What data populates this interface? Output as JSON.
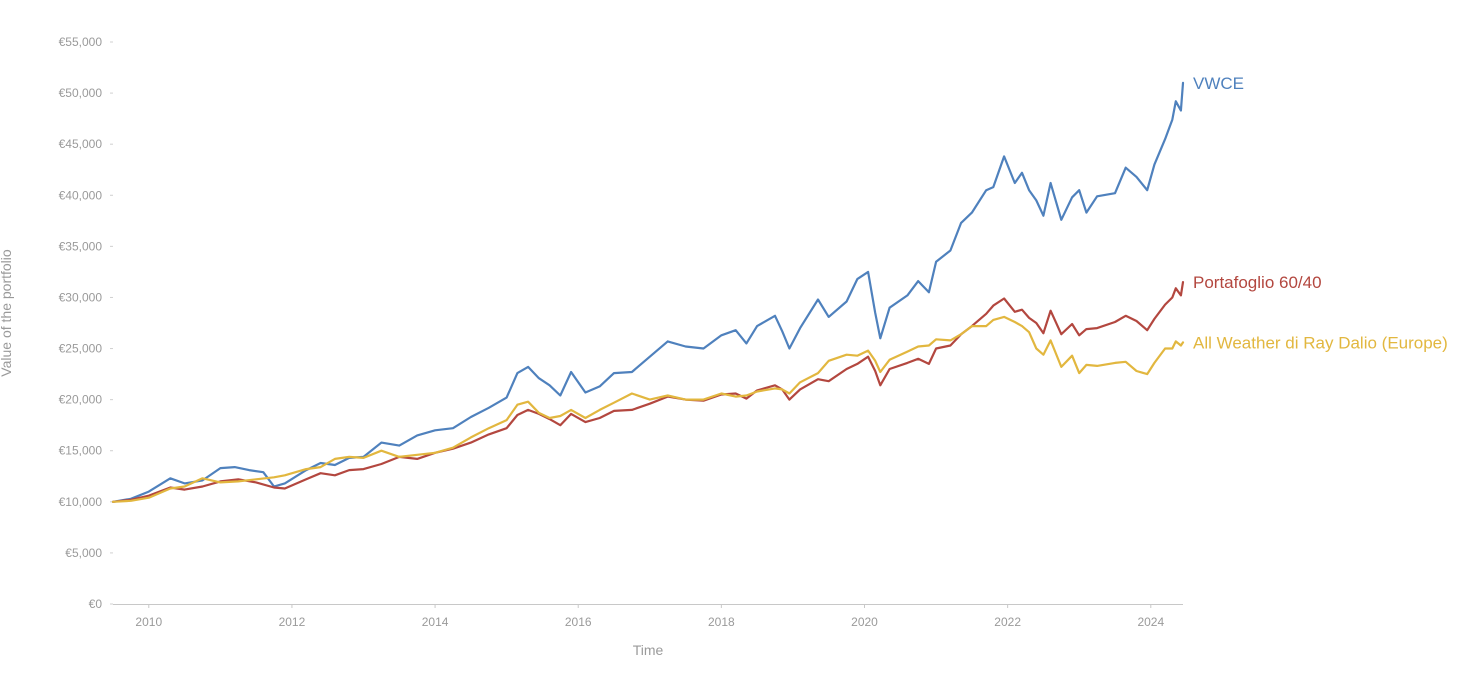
{
  "chart_data": {
    "type": "line",
    "xlabel": "Time",
    "ylabel": "Value of the portfolio",
    "xlim": [
      2009.5,
      2024.45
    ],
    "ylim": [
      0,
      55000
    ],
    "x_ticks": [
      2010,
      2012,
      2014,
      2016,
      2018,
      2020,
      2022,
      2024
    ],
    "x_tick_labels": [
      "2010",
      "2012",
      "2014",
      "2016",
      "2018",
      "2020",
      "2022",
      "2024"
    ],
    "y_ticks": [
      0,
      5000,
      10000,
      15000,
      20000,
      25000,
      30000,
      35000,
      40000,
      45000,
      50000,
      55000
    ],
    "y_tick_labels": [
      "€0",
      "€5,000",
      "€10,000",
      "€15,000",
      "€20,000",
      "€25,000",
      "€30,000",
      "€35,000",
      "€40,000",
      "€45,000",
      "€50,000",
      "€55,000"
    ],
    "grid": false,
    "legend": "inline-right",
    "series": [
      {
        "name": "VWCE",
        "color": "#4f81bd",
        "points": [
          [
            2009.5,
            10000
          ],
          [
            2009.75,
            10300
          ],
          [
            2010.0,
            11000
          ],
          [
            2010.3,
            12300
          ],
          [
            2010.5,
            11800
          ],
          [
            2010.75,
            12100
          ],
          [
            2011.0,
            13300
          ],
          [
            2011.2,
            13400
          ],
          [
            2011.4,
            13100
          ],
          [
            2011.6,
            12900
          ],
          [
            2011.75,
            11500
          ],
          [
            2011.9,
            11800
          ],
          [
            2012.2,
            13100
          ],
          [
            2012.4,
            13800
          ],
          [
            2012.6,
            13600
          ],
          [
            2012.8,
            14300
          ],
          [
            2013.0,
            14400
          ],
          [
            2013.25,
            15800
          ],
          [
            2013.5,
            15500
          ],
          [
            2013.75,
            16500
          ],
          [
            2014.0,
            17000
          ],
          [
            2014.25,
            17200
          ],
          [
            2014.5,
            18300
          ],
          [
            2014.75,
            19200
          ],
          [
            2015.0,
            20200
          ],
          [
            2015.15,
            22600
          ],
          [
            2015.3,
            23200
          ],
          [
            2015.45,
            22100
          ],
          [
            2015.6,
            21400
          ],
          [
            2015.75,
            20400
          ],
          [
            2015.9,
            22700
          ],
          [
            2016.1,
            20700
          ],
          [
            2016.3,
            21300
          ],
          [
            2016.5,
            22600
          ],
          [
            2016.75,
            22700
          ],
          [
            2017.0,
            24200
          ],
          [
            2017.25,
            25700
          ],
          [
            2017.5,
            25200
          ],
          [
            2017.75,
            25000
          ],
          [
            2018.0,
            26300
          ],
          [
            2018.2,
            26800
          ],
          [
            2018.35,
            25500
          ],
          [
            2018.5,
            27200
          ],
          [
            2018.75,
            28200
          ],
          [
            2018.85,
            26700
          ],
          [
            2018.95,
            25000
          ],
          [
            2019.1,
            27000
          ],
          [
            2019.35,
            29800
          ],
          [
            2019.5,
            28100
          ],
          [
            2019.75,
            29600
          ],
          [
            2019.9,
            31800
          ],
          [
            2020.05,
            32500
          ],
          [
            2020.15,
            28500
          ],
          [
            2020.22,
            26000
          ],
          [
            2020.35,
            29000
          ],
          [
            2020.6,
            30200
          ],
          [
            2020.75,
            31600
          ],
          [
            2020.9,
            30500
          ],
          [
            2021.0,
            33500
          ],
          [
            2021.2,
            34600
          ],
          [
            2021.35,
            37300
          ],
          [
            2021.5,
            38300
          ],
          [
            2021.7,
            40500
          ],
          [
            2021.8,
            40800
          ],
          [
            2021.95,
            43800
          ],
          [
            2022.1,
            41200
          ],
          [
            2022.2,
            42200
          ],
          [
            2022.3,
            40500
          ],
          [
            2022.4,
            39500
          ],
          [
            2022.5,
            38000
          ],
          [
            2022.6,
            41200
          ],
          [
            2022.75,
            37600
          ],
          [
            2022.9,
            39800
          ],
          [
            2023.0,
            40500
          ],
          [
            2023.1,
            38300
          ],
          [
            2023.25,
            39900
          ],
          [
            2023.5,
            40200
          ],
          [
            2023.65,
            42700
          ],
          [
            2023.8,
            41800
          ],
          [
            2023.95,
            40500
          ],
          [
            2024.05,
            43000
          ],
          [
            2024.2,
            45500
          ],
          [
            2024.3,
            47400
          ],
          [
            2024.35,
            49200
          ],
          [
            2024.42,
            48300
          ],
          [
            2024.45,
            51000
          ]
        ]
      },
      {
        "name": "Portafoglio 60/40",
        "color": "#b3473f",
        "points": [
          [
            2009.5,
            10000
          ],
          [
            2009.75,
            10200
          ],
          [
            2010.0,
            10600
          ],
          [
            2010.3,
            11400
          ],
          [
            2010.5,
            11200
          ],
          [
            2010.75,
            11500
          ],
          [
            2011.0,
            12000
          ],
          [
            2011.25,
            12200
          ],
          [
            2011.5,
            11900
          ],
          [
            2011.75,
            11400
          ],
          [
            2011.9,
            11300
          ],
          [
            2012.2,
            12200
          ],
          [
            2012.4,
            12800
          ],
          [
            2012.6,
            12600
          ],
          [
            2012.8,
            13100
          ],
          [
            2013.0,
            13200
          ],
          [
            2013.25,
            13700
          ],
          [
            2013.5,
            14400
          ],
          [
            2013.75,
            14200
          ],
          [
            2014.0,
            14800
          ],
          [
            2014.25,
            15200
          ],
          [
            2014.5,
            15800
          ],
          [
            2014.75,
            16600
          ],
          [
            2015.0,
            17200
          ],
          [
            2015.15,
            18500
          ],
          [
            2015.3,
            19000
          ],
          [
            2015.45,
            18600
          ],
          [
            2015.6,
            18100
          ],
          [
            2015.75,
            17500
          ],
          [
            2015.9,
            18600
          ],
          [
            2016.1,
            17800
          ],
          [
            2016.3,
            18200
          ],
          [
            2016.5,
            18900
          ],
          [
            2016.75,
            19000
          ],
          [
            2017.0,
            19600
          ],
          [
            2017.25,
            20300
          ],
          [
            2017.5,
            20000
          ],
          [
            2017.75,
            19900
          ],
          [
            2018.0,
            20500
          ],
          [
            2018.2,
            20600
          ],
          [
            2018.35,
            20100
          ],
          [
            2018.5,
            20900
          ],
          [
            2018.75,
            21400
          ],
          [
            2018.85,
            21000
          ],
          [
            2018.95,
            20000
          ],
          [
            2019.1,
            21000
          ],
          [
            2019.35,
            22000
          ],
          [
            2019.5,
            21800
          ],
          [
            2019.75,
            23000
          ],
          [
            2019.9,
            23500
          ],
          [
            2020.05,
            24200
          ],
          [
            2020.15,
            22800
          ],
          [
            2020.22,
            21400
          ],
          [
            2020.35,
            23000
          ],
          [
            2020.6,
            23600
          ],
          [
            2020.75,
            24000
          ],
          [
            2020.9,
            23500
          ],
          [
            2021.0,
            25000
          ],
          [
            2021.2,
            25300
          ],
          [
            2021.35,
            26400
          ],
          [
            2021.5,
            27200
          ],
          [
            2021.7,
            28400
          ],
          [
            2021.8,
            29200
          ],
          [
            2021.95,
            29900
          ],
          [
            2022.1,
            28600
          ],
          [
            2022.2,
            28800
          ],
          [
            2022.3,
            28000
          ],
          [
            2022.4,
            27500
          ],
          [
            2022.5,
            26500
          ],
          [
            2022.6,
            28700
          ],
          [
            2022.75,
            26400
          ],
          [
            2022.9,
            27400
          ],
          [
            2023.0,
            26300
          ],
          [
            2023.1,
            26900
          ],
          [
            2023.25,
            27000
          ],
          [
            2023.5,
            27600
          ],
          [
            2023.65,
            28200
          ],
          [
            2023.8,
            27700
          ],
          [
            2023.95,
            26800
          ],
          [
            2024.05,
            27900
          ],
          [
            2024.2,
            29300
          ],
          [
            2024.3,
            30000
          ],
          [
            2024.35,
            30900
          ],
          [
            2024.42,
            30200
          ],
          [
            2024.45,
            31500
          ]
        ]
      },
      {
        "name": "All Weather di Ray Dalio (Europe)",
        "color": "#e2b73f",
        "points": [
          [
            2009.5,
            10000
          ],
          [
            2009.75,
            10100
          ],
          [
            2010.0,
            10400
          ],
          [
            2010.3,
            11300
          ],
          [
            2010.5,
            11500
          ],
          [
            2010.75,
            12300
          ],
          [
            2011.0,
            11900
          ],
          [
            2011.25,
            12000
          ],
          [
            2011.5,
            12200
          ],
          [
            2011.75,
            12400
          ],
          [
            2011.9,
            12600
          ],
          [
            2012.2,
            13200
          ],
          [
            2012.4,
            13400
          ],
          [
            2012.6,
            14200
          ],
          [
            2012.8,
            14400
          ],
          [
            2013.0,
            14300
          ],
          [
            2013.25,
            15000
          ],
          [
            2013.5,
            14400
          ],
          [
            2013.75,
            14600
          ],
          [
            2014.0,
            14800
          ],
          [
            2014.25,
            15300
          ],
          [
            2014.5,
            16300
          ],
          [
            2014.75,
            17200
          ],
          [
            2015.0,
            18000
          ],
          [
            2015.15,
            19500
          ],
          [
            2015.3,
            19800
          ],
          [
            2015.45,
            18700
          ],
          [
            2015.6,
            18200
          ],
          [
            2015.75,
            18400
          ],
          [
            2015.9,
            19000
          ],
          [
            2016.1,
            18200
          ],
          [
            2016.3,
            19000
          ],
          [
            2016.5,
            19700
          ],
          [
            2016.75,
            20600
          ],
          [
            2017.0,
            20000
          ],
          [
            2017.25,
            20400
          ],
          [
            2017.5,
            20000
          ],
          [
            2017.75,
            20000
          ],
          [
            2018.0,
            20600
          ],
          [
            2018.2,
            20300
          ],
          [
            2018.35,
            20400
          ],
          [
            2018.5,
            20800
          ],
          [
            2018.75,
            21100
          ],
          [
            2018.85,
            21000
          ],
          [
            2018.95,
            20600
          ],
          [
            2019.1,
            21700
          ],
          [
            2019.35,
            22600
          ],
          [
            2019.5,
            23800
          ],
          [
            2019.75,
            24400
          ],
          [
            2019.9,
            24300
          ],
          [
            2020.05,
            24800
          ],
          [
            2020.15,
            23800
          ],
          [
            2020.22,
            22700
          ],
          [
            2020.35,
            23900
          ],
          [
            2020.6,
            24700
          ],
          [
            2020.75,
            25200
          ],
          [
            2020.9,
            25300
          ],
          [
            2021.0,
            25900
          ],
          [
            2021.2,
            25800
          ],
          [
            2021.35,
            26400
          ],
          [
            2021.5,
            27200
          ],
          [
            2021.7,
            27200
          ],
          [
            2021.8,
            27800
          ],
          [
            2021.95,
            28100
          ],
          [
            2022.1,
            27600
          ],
          [
            2022.2,
            27200
          ],
          [
            2022.3,
            26600
          ],
          [
            2022.4,
            25000
          ],
          [
            2022.5,
            24400
          ],
          [
            2022.6,
            25800
          ],
          [
            2022.75,
            23200
          ],
          [
            2022.9,
            24300
          ],
          [
            2023.0,
            22600
          ],
          [
            2023.1,
            23400
          ],
          [
            2023.25,
            23300
          ],
          [
            2023.5,
            23600
          ],
          [
            2023.65,
            23700
          ],
          [
            2023.8,
            22800
          ],
          [
            2023.95,
            22500
          ],
          [
            2024.05,
            23600
          ],
          [
            2024.2,
            25000
          ],
          [
            2024.3,
            25000
          ],
          [
            2024.35,
            25700
          ],
          [
            2024.42,
            25300
          ],
          [
            2024.45,
            25600
          ]
        ]
      }
    ]
  }
}
